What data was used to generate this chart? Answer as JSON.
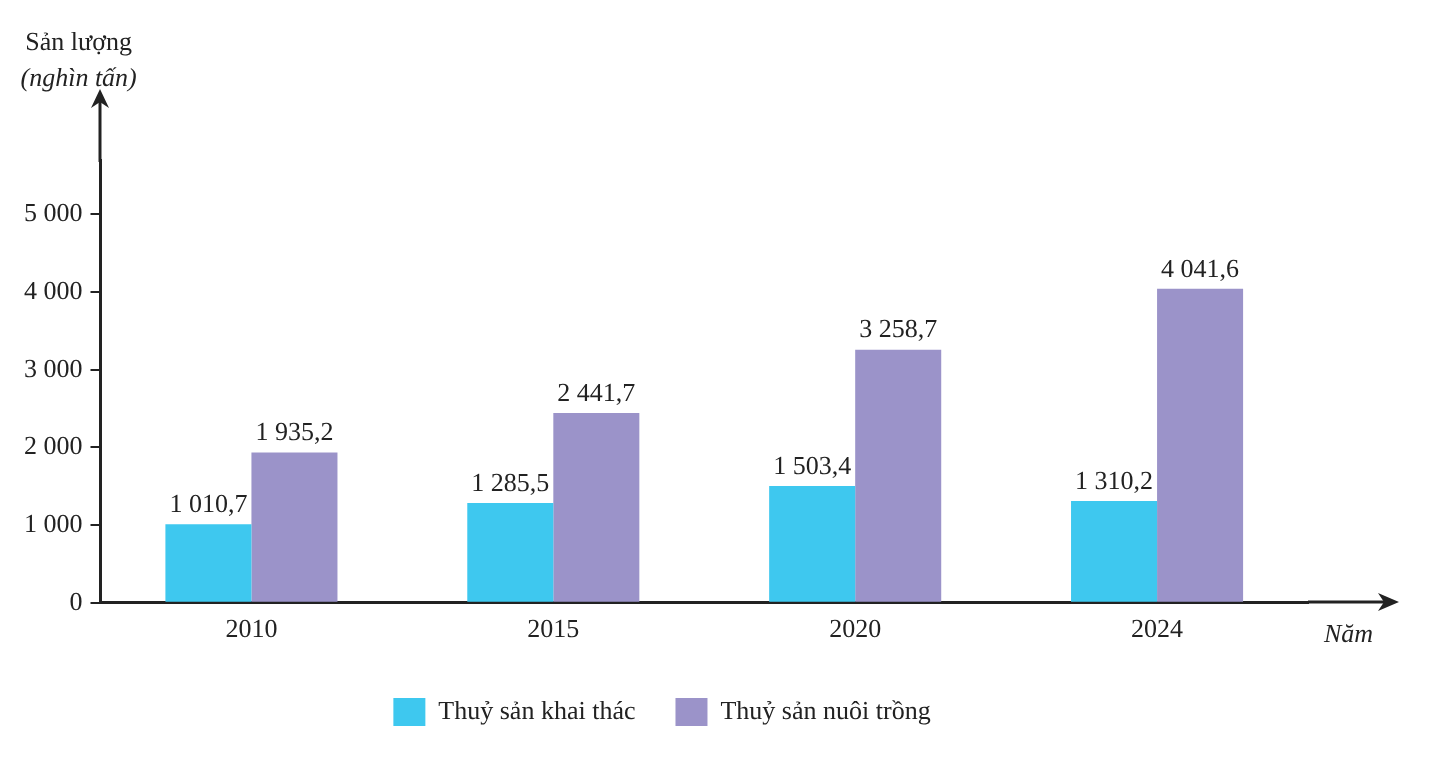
{
  "chart_data": {
    "type": "bar",
    "ylabel": "Sản lượng\n(nghìn tấn)",
    "xlabel": "Năm",
    "categories": [
      "2010",
      "2015",
      "2020",
      "2024"
    ],
    "series": [
      {
        "name": "Thuỷ sản khai thác",
        "color": "#3ec8ef",
        "values": [
          1010.7,
          1285.5,
          1503.4,
          1310.2
        ],
        "value_labels": [
          "1 010,7",
          "1 285,5",
          "1 503,4",
          "1 310,2"
        ]
      },
      {
        "name": "Thuỷ sản nuôi trồng",
        "color": "#9b93c9",
        "values": [
          1935.2,
          2441.7,
          3258.7,
          4041.6
        ],
        "value_labels": [
          "1 935,2",
          "2 441,7",
          "3 258,7",
          "4 041,6"
        ]
      }
    ],
    "ylim": [
      0,
      5700
    ],
    "yticks": [
      0,
      {
        "value": 1000,
        "label": "1 000"
      },
      {
        "value": 2000,
        "label": "2 000"
      },
      {
        "value": 3000,
        "label": "3 000"
      },
      {
        "value": 4000,
        "label": "4 000"
      },
      {
        "value": 5000,
        "label": "5 000"
      }
    ],
    "grid": false,
    "legend": "bottom"
  }
}
